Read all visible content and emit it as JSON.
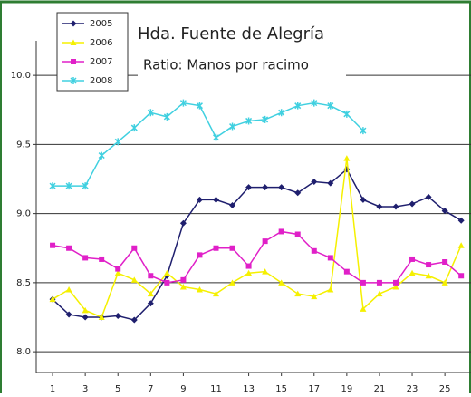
{
  "chart_data": {
    "type": "line",
    "title": "Hda. Fuente de Alegría",
    "subtitle": "Ratio: Manos por racimo",
    "x": [
      1,
      2,
      3,
      4,
      5,
      6,
      7,
      8,
      9,
      10,
      11,
      12,
      13,
      14,
      15,
      16,
      17,
      18,
      19,
      20,
      21,
      22,
      23,
      24,
      25,
      26
    ],
    "xlim": [
      0,
      26.6
    ],
    "xticks": [
      1,
      3,
      5,
      7,
      9,
      11,
      13,
      15,
      17,
      19,
      21,
      23,
      25
    ],
    "ylim": [
      7.85,
      10.25
    ],
    "yticks": [
      {
        "value": 8,
        "label": "8.0"
      },
      8.5,
      {
        "value": 9,
        "label": "9.0"
      },
      9.5,
      {
        "value": 10,
        "label": "10.0"
      }
    ],
    "grid": true,
    "legend": "top-left",
    "series": [
      {
        "name": "2005",
        "color": "#1f1f6e",
        "marker": "diamond",
        "values": [
          8.38,
          8.27,
          8.25,
          8.25,
          8.26,
          8.23,
          8.35,
          8.55,
          8.93,
          9.1,
          9.1,
          9.06,
          9.19,
          9.19,
          9.19,
          9.15,
          9.23,
          9.22,
          9.32,
          9.1,
          9.05,
          9.05,
          9.07,
          9.12,
          9.02,
          8.95
        ]
      },
      {
        "name": "2006",
        "color": "#f5f000",
        "marker": "triangle",
        "values": [
          8.38,
          8.45,
          8.3,
          8.25,
          8.57,
          8.52,
          8.42,
          8.57,
          8.47,
          8.45,
          8.42,
          8.5,
          8.57,
          8.58,
          8.5,
          8.42,
          8.4,
          8.45,
          9.4,
          8.31,
          8.42,
          8.47,
          8.57,
          8.55,
          8.5,
          8.77
        ]
      },
      {
        "name": "2007",
        "color": "#e020c8",
        "marker": "square",
        "values": [
          8.77,
          8.75,
          8.68,
          8.67,
          8.6,
          8.75,
          8.55,
          8.5,
          8.52,
          8.7,
          8.75,
          8.75,
          8.62,
          8.8,
          8.87,
          8.85,
          8.73,
          8.68,
          8.58,
          8.5,
          8.5,
          8.5,
          8.67,
          8.63,
          8.65,
          8.55
        ]
      },
      {
        "name": "2008",
        "color": "#40d0e0",
        "marker": "cross",
        "values": [
          9.2,
          9.2,
          9.2,
          9.42,
          9.52,
          9.62,
          9.73,
          9.7,
          9.8,
          9.78,
          9.55,
          9.63,
          9.67,
          9.68,
          9.73,
          9.78,
          9.8,
          9.78,
          9.72,
          9.6,
          null,
          null,
          null,
          null,
          null,
          null
        ]
      }
    ]
  }
}
